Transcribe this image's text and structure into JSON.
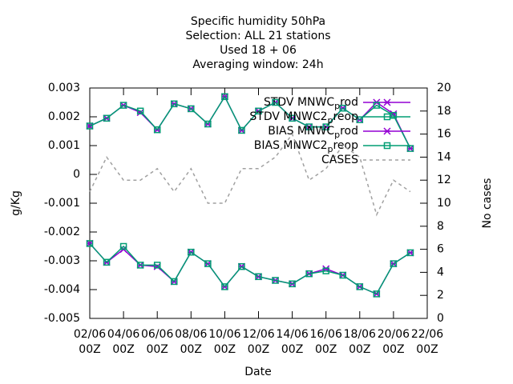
{
  "chart_data": {
    "type": "line",
    "title": [
      "Specific humidity 50hPa",
      "Selection: ALL     21 stations",
      "Used  18 + 06",
      "Averaging window: 24h"
    ],
    "xlabel": "Date",
    "ylabel": "g/Kg",
    "y2label": "No cases",
    "x": [
      2,
      3,
      4,
      5,
      6,
      7,
      8,
      9,
      10,
      11,
      12,
      13,
      14,
      15,
      16,
      17,
      18,
      19,
      20,
      21
    ],
    "xlim": [
      2,
      22
    ],
    "xticks": [
      {
        "value": 2,
        "label": "02/06 00Z"
      },
      {
        "value": 4,
        "label": "04/06 00Z"
      },
      {
        "value": 6,
        "label": "06/06 00Z"
      },
      {
        "value": 8,
        "label": "08/06 00Z"
      },
      {
        "value": 10,
        "label": "10/06 00Z"
      },
      {
        "value": 12,
        "label": "12/06 00Z"
      },
      {
        "value": 14,
        "label": "14/06 00Z"
      },
      {
        "value": 16,
        "label": "16/06 00Z"
      },
      {
        "value": 18,
        "label": "18/06 00Z"
      },
      {
        "value": 20,
        "label": "20/06 00Z"
      },
      {
        "value": 22,
        "label": "22/06 00Z"
      }
    ],
    "ylim": [
      -0.005,
      0.003
    ],
    "yticks": [
      -0.005,
      -0.004,
      -0.003,
      -0.002,
      -0.001,
      0,
      0.001,
      0.002,
      0.003
    ],
    "y2lim": [
      0,
      20
    ],
    "y2ticks": [
      0,
      2,
      4,
      6,
      8,
      10,
      12,
      14,
      16,
      18,
      20
    ],
    "legend": "top-right",
    "series": [
      {
        "name": "STDV MNWC_prod",
        "color": "#9400d3",
        "marker": "star",
        "values": [
          0.00168,
          0.00195,
          0.0024,
          0.00215,
          0.00155,
          0.00245,
          0.00228,
          0.00175,
          0.0027,
          0.00153,
          0.0022,
          0.0025,
          0.00195,
          0.00165,
          0.00165,
          0.0023,
          0.0019,
          0.0025,
          0.0021,
          0.0009
        ]
      },
      {
        "name": "STDV MNWC2_preop",
        "color": "#009e73",
        "marker": "square",
        "values": [
          0.00168,
          0.00195,
          0.0024,
          0.0022,
          0.00155,
          0.00245,
          0.00228,
          0.00175,
          0.0027,
          0.00153,
          0.0022,
          0.0025,
          0.00195,
          0.00165,
          0.00165,
          0.0023,
          0.0019,
          0.0024,
          0.00205,
          0.0009
        ]
      },
      {
        "name": "BIAS MNWC_prod",
        "color": "#9400d3",
        "marker": "star",
        "values": [
          -0.0024,
          -0.00305,
          -0.0026,
          -0.00315,
          -0.0032,
          -0.00372,
          -0.0027,
          -0.0031,
          -0.0039,
          -0.0032,
          -0.00355,
          -0.00368,
          -0.0038,
          -0.00345,
          -0.00328,
          -0.0035,
          -0.0039,
          -0.00415,
          -0.0031,
          -0.00272
        ]
      },
      {
        "name": "BIAS MNWC2_preop",
        "color": "#009e73",
        "marker": "square",
        "values": [
          -0.0024,
          -0.00305,
          -0.0025,
          -0.00315,
          -0.00315,
          -0.00372,
          -0.0027,
          -0.0031,
          -0.0039,
          -0.0032,
          -0.00355,
          -0.00368,
          -0.0038,
          -0.00345,
          -0.00335,
          -0.0035,
          -0.0039,
          -0.00415,
          -0.0031,
          -0.00272
        ]
      },
      {
        "name": "CASES",
        "color": "#a0a0a0",
        "marker": "none",
        "dash": true,
        "axis": "y2",
        "values": [
          11,
          14,
          12,
          12,
          13,
          11,
          13,
          10,
          10,
          13,
          13,
          14,
          16,
          12,
          13,
          15,
          14,
          9,
          12,
          11
        ]
      }
    ]
  }
}
